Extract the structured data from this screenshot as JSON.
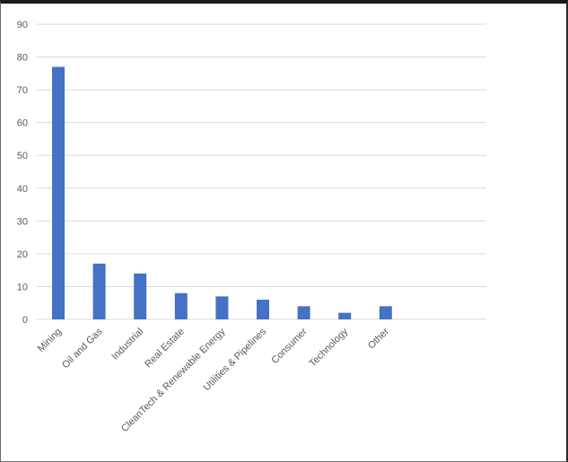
{
  "chart_data": {
    "type": "bar",
    "title": "",
    "xlabel": "",
    "ylabel": "",
    "categories": [
      "Mining",
      "Oil and Gas",
      "Industrial",
      "Real Estate",
      "CleanTech & Renewable Energy",
      "Utilities & Pipelines",
      "Consumer",
      "Technology",
      "Other"
    ],
    "values": [
      77,
      17,
      14,
      8,
      7,
      6,
      4,
      2,
      4
    ],
    "ylim": [
      0,
      90
    ],
    "yticks": [
      0,
      10,
      20,
      30,
      40,
      50,
      60,
      70,
      80,
      90
    ],
    "grid": true,
    "legend": "none",
    "bar_color": "#4472c4"
  }
}
